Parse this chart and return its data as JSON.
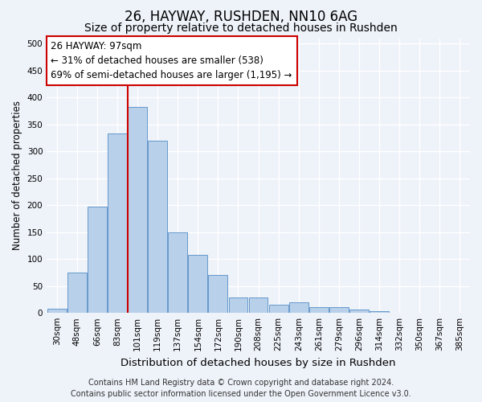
{
  "title": "26, HAYWAY, RUSHDEN, NN10 6AG",
  "subtitle": "Size of property relative to detached houses in Rushden",
  "xlabel": "Distribution of detached houses by size in Rushden",
  "ylabel": "Number of detached properties",
  "categories": [
    "30sqm",
    "48sqm",
    "66sqm",
    "83sqm",
    "101sqm",
    "119sqm",
    "137sqm",
    "154sqm",
    "172sqm",
    "190sqm",
    "208sqm",
    "225sqm",
    "243sqm",
    "261sqm",
    "279sqm",
    "296sqm",
    "314sqm",
    "332sqm",
    "350sqm",
    "367sqm",
    "385sqm"
  ],
  "values": [
    8,
    75,
    197,
    333,
    383,
    320,
    150,
    108,
    70,
    28,
    28,
    15,
    20,
    10,
    10,
    6,
    3,
    0,
    0,
    1,
    0
  ],
  "bar_color": "#b8d0ea",
  "bar_edge_color": "#6699cc",
  "red_line_x": 3.5,
  "annotation_box_text": "26 HAYWAY: 97sqm\n← 31% of detached houses are smaller (538)\n69% of semi-detached houses are larger (1,195) →",
  "ylim": [
    0,
    510
  ],
  "yticks": [
    0,
    50,
    100,
    150,
    200,
    250,
    300,
    350,
    400,
    450,
    500
  ],
  "footer_line1": "Contains HM Land Registry data © Crown copyright and database right 2024.",
  "footer_line2": "Contains public sector information licensed under the Open Government Licence v3.0.",
  "background_color": "#eef2f9",
  "plot_bg_color": "#eef2f9",
  "grid_color": "#ffffff",
  "red_line_color": "#cc0000",
  "box_edge_color": "#cc0000",
  "title_fontsize": 12,
  "subtitle_fontsize": 10,
  "xlabel_fontsize": 9.5,
  "ylabel_fontsize": 8.5,
  "tick_fontsize": 7.5,
  "annotation_fontsize": 8.5,
  "footer_fontsize": 7
}
